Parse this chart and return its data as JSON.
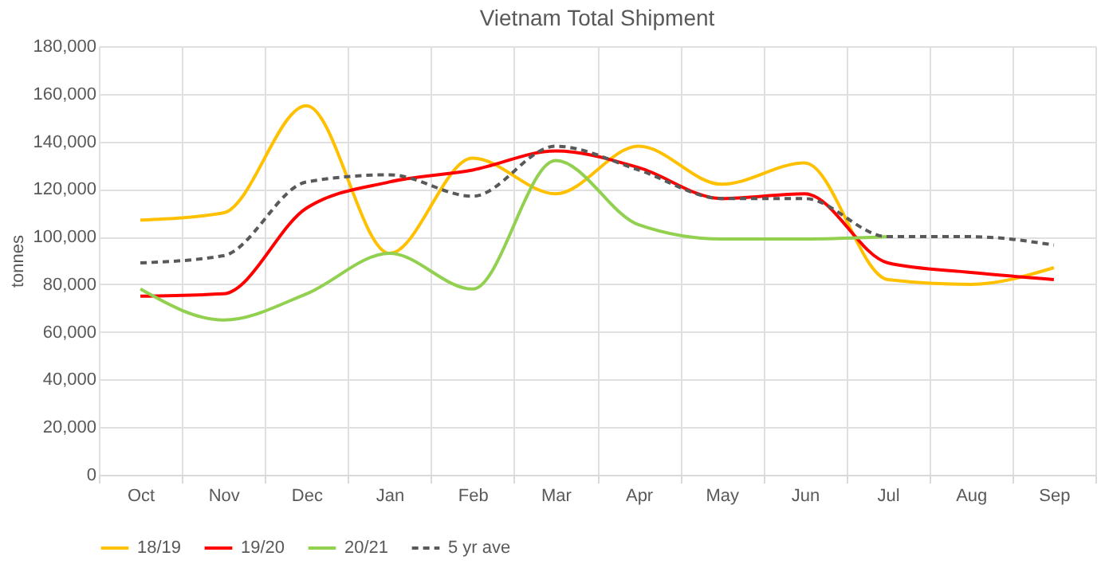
{
  "chart_data": {
    "type": "line",
    "title": "Vietnam Total Shipment",
    "ylabel": "tonnes",
    "categories": [
      "Oct",
      "Nov",
      "Dec",
      "Jan",
      "Feb",
      "Mar",
      "Apr",
      "May",
      "Jun",
      "Jul",
      "Aug",
      "Sep"
    ],
    "series": [
      {
        "name": "18/19",
        "color": "#ffc000",
        "line_style": "solid",
        "values": [
          107000,
          110000,
          155000,
          93000,
          133000,
          118000,
          138000,
          122000,
          131000,
          82000,
          80000,
          87000
        ]
      },
      {
        "name": "19/20",
        "color": "#ff0000",
        "line_style": "solid",
        "values": [
          75000,
          76000,
          112000,
          123000,
          128000,
          136000,
          129000,
          116000,
          118000,
          89000,
          85000,
          82000
        ]
      },
      {
        "name": "20/21",
        "color": "#92d050",
        "line_style": "solid",
        "values": [
          78000,
          65000,
          76000,
          93000,
          78000,
          132000,
          105000,
          99000,
          99000,
          100000,
          null,
          null
        ]
      },
      {
        "name": "5 yr ave",
        "color": "#595959",
        "line_style": "dashed",
        "values": [
          89000,
          92000,
          123000,
          126000,
          117000,
          138000,
          128000,
          116000,
          116000,
          100000,
          100000,
          96500
        ]
      }
    ],
    "ylim": [
      0,
      180000
    ],
    "yticks": [
      0,
      {
        "value": 20000,
        "label": "20,000"
      },
      {
        "value": 40000,
        "label": "40,000"
      },
      {
        "value": 60000,
        "label": "60,000"
      },
      {
        "value": 80000,
        "label": "80,000"
      },
      {
        "value": 100000,
        "label": "100,000"
      },
      {
        "value": 120000,
        "label": "120,000"
      },
      {
        "value": 140000,
        "label": "140,000"
      },
      {
        "value": 160000,
        "label": "160,000"
      },
      {
        "value": 180000,
        "label": "180,000"
      }
    ],
    "grid": true,
    "legend": "bottom",
    "marker": "none"
  }
}
